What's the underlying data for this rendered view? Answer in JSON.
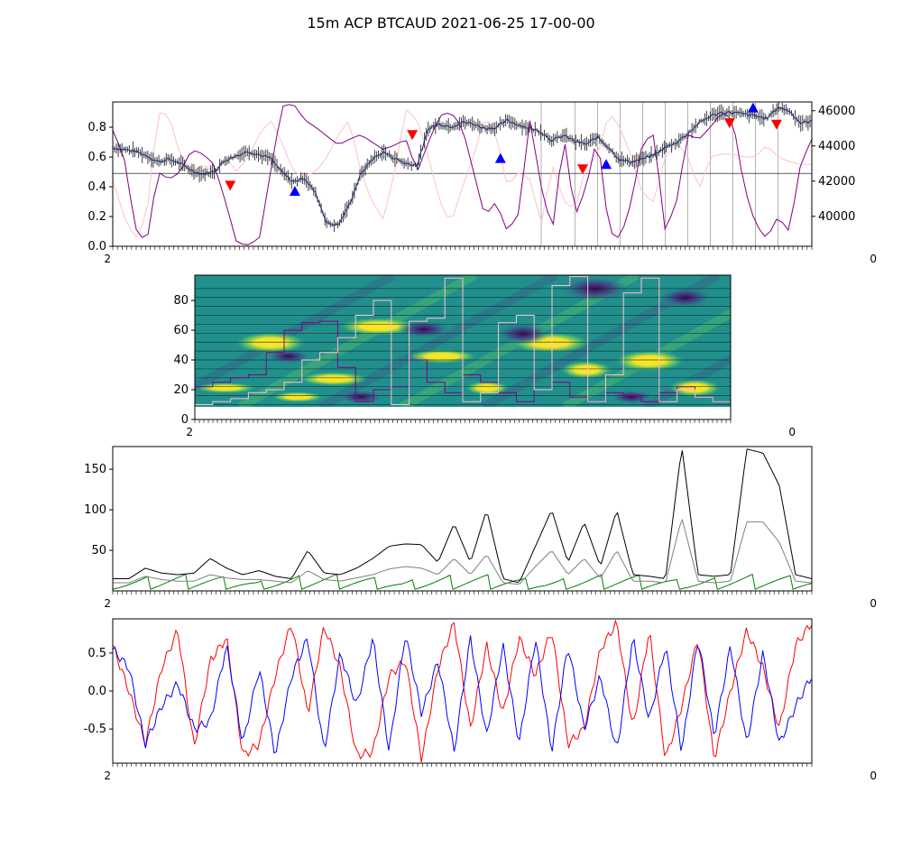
{
  "figure": {
    "title": "15m ACP BTCAUD 2021-06-25 17-00-00"
  },
  "chart_data": [
    {
      "panel": 1,
      "type": "line",
      "title": "",
      "xlabel": "",
      "ylabel": "",
      "ylim_left": [
        0.0,
        0.97
      ],
      "yticks_left": [
        "0.0",
        "0.2",
        "0.4",
        "0.6",
        "0.8"
      ],
      "ylim_right": [
        38300,
        46500
      ],
      "yticks_right": [
        "40000",
        "42000",
        "44000",
        "46000"
      ],
      "hline": 0.49,
      "colors": {
        "price": "#1b2a7a",
        "candles": "#000000",
        "purple": "#800080",
        "pink": "#ffc0cb",
        "sell": "#ff0000",
        "buy": "#0000ff",
        "vlines": "#808080"
      },
      "price": [
        43900,
        43800,
        43700,
        43450,
        43100,
        43250,
        43000,
        42600,
        42400,
        42550,
        43200,
        43450,
        43700,
        43500,
        43300,
        42500,
        41950,
        42200,
        41300,
        39600,
        39500,
        40700,
        42400,
        43250,
        43650,
        43300,
        43000,
        42900,
        45000,
        45250,
        45100,
        45350,
        45250,
        45000,
        45050,
        45450,
        45200,
        45000,
        44800,
        44300,
        44600,
        44250,
        44100,
        44500,
        43900,
        43200,
        43100,
        43250,
        43500,
        43900,
        44200,
        44700,
        45300,
        45700,
        45900,
        45900,
        45800,
        45700,
        45550,
        46200,
        46000,
        45300,
        45400
      ],
      "purple": [
        0.78,
        0.6,
        0.12,
        0.02,
        0.5,
        0.45,
        0.5,
        0.65,
        0.62,
        0.55,
        0.3,
        0.02,
        0.01,
        0.05,
        0.5,
        0.94,
        0.96,
        0.85,
        0.8,
        0.74,
        0.68,
        0.72,
        0.75,
        0.7,
        0.65,
        0.68,
        0.72,
        0.5,
        0.7,
        0.88,
        0.9,
        0.8,
        0.5,
        0.2,
        0.3,
        0.1,
        0.22,
        0.85,
        0.4,
        0.1,
        0.75,
        0.2,
        0.4,
        0.75,
        0.1,
        0.05,
        0.3,
        0.7,
        0.75,
        0.1,
        0.3,
        0.75,
        0.72,
        0.8,
        0.9,
        0.85,
        0.4,
        0.15,
        0.05,
        0.2,
        0.1,
        0.55,
        0.72
      ],
      "pink": [
        0.45,
        0.2,
        0.05,
        0.2,
        0.9,
        0.88,
        0.6,
        0.5,
        0.55,
        0.5,
        0.6,
        0.5,
        0.6,
        0.75,
        0.85,
        0.7,
        0.5,
        0.48,
        0.5,
        0.6,
        0.75,
        0.85,
        0.5,
        0.3,
        0.18,
        0.5,
        0.92,
        0.85,
        0.6,
        0.3,
        0.15,
        0.4,
        0.6,
        0.88,
        0.75,
        0.4,
        0.5,
        0.45,
        0.15,
        0.55,
        0.3,
        0.25,
        0.55,
        0.6,
        0.9,
        0.8,
        0.6,
        0.35,
        0.3,
        0.6,
        0.7,
        0.6,
        0.38,
        0.6,
        0.62,
        0.62,
        0.6,
        0.6,
        0.68,
        0.6,
        0.57,
        0.55,
        0.55
      ],
      "vlines_index": [
        38,
        41,
        43,
        45,
        47,
        49,
        51,
        53,
        55,
        57,
        59
      ],
      "sell_signals": [
        {
          "i": 20,
          "y": 0.41
        },
        {
          "i": 51,
          "y": 0.75
        },
        {
          "i": 80,
          "y": 0.52
        },
        {
          "i": 105,
          "y": 0.83
        },
        {
          "i": 113,
          "y": 0.82
        }
      ],
      "buy_signals": [
        {
          "i": 31,
          "y": 0.37
        },
        {
          "i": 66,
          "y": 0.59
        },
        {
          "i": 84,
          "y": 0.55
        },
        {
          "i": 109,
          "y": 0.93
        }
      ]
    },
    {
      "panel": 2,
      "type": "heatmap",
      "title": "",
      "xlabel": "",
      "ylabel": "",
      "ylim": [
        0,
        97
      ],
      "yticks": [
        "0",
        "20",
        "40",
        "60",
        "80"
      ],
      "colors": {
        "background": "#21908d",
        "hot": "#fde725",
        "cold": "#440154",
        "light": "#ffc0cb",
        "dark": "#800080",
        "gridlines": "#0b2a2a"
      },
      "light_line": [
        10,
        12,
        14,
        18,
        20,
        25,
        40,
        45,
        55,
        70,
        80,
        10,
        66,
        68,
        95,
        12,
        18,
        65,
        70,
        20,
        90,
        96,
        12,
        30,
        85,
        95,
        12,
        20,
        15,
        12
      ],
      "dark_line": [
        22,
        25,
        28,
        30,
        45,
        60,
        65,
        66,
        35,
        12,
        20,
        22,
        40,
        25,
        18,
        30,
        25,
        18,
        12,
        20,
        25,
        15,
        12,
        18,
        16,
        12,
        18,
        22,
        15,
        12
      ]
    },
    {
      "panel": 3,
      "type": "line",
      "title": "",
      "xlabel": "",
      "ylabel": "",
      "ylim": [
        0,
        178
      ],
      "yticks": [
        "50",
        "100",
        "150"
      ],
      "colors": {
        "black": "#000000",
        "gray": "#808080",
        "green": "#008000"
      },
      "black": [
        15,
        15,
        28,
        22,
        20,
        22,
        40,
        28,
        20,
        25,
        18,
        15,
        50,
        22,
        20,
        28,
        40,
        55,
        58,
        57,
        35,
        83,
        35,
        100,
        15,
        10,
        55,
        100,
        35,
        85,
        30,
        100,
        20,
        18,
        15,
        178,
        20,
        18,
        20,
        175,
        170,
        130,
        20,
        15
      ],
      "gray": [
        10,
        10,
        18,
        14,
        12,
        12,
        20,
        16,
        14,
        14,
        12,
        10,
        25,
        14,
        12,
        16,
        20,
        27,
        30,
        28,
        20,
        40,
        20,
        45,
        10,
        8,
        30,
        50,
        20,
        40,
        15,
        50,
        12,
        12,
        10,
        90,
        12,
        10,
        12,
        85,
        85,
        60,
        12,
        10
      ],
      "green_sawtooth_period": 14,
      "green_peak": 20
    },
    {
      "panel": 4,
      "type": "line",
      "title": "",
      "xlabel": "",
      "ylabel": "",
      "ylim": [
        -0.95,
        0.95
      ],
      "yticks": [
        "0.5",
        "0.0",
        "-0.5"
      ],
      "colors": {
        "red": "#ff0000",
        "blue": "#0000ff"
      },
      "red": [
        0.6,
        0.0,
        -0.7,
        0.3,
        0.8,
        -0.75,
        0.4,
        0.7,
        -0.85,
        -0.7,
        0.2,
        0.9,
        -0.3,
        0.85,
        0.3,
        -0.85,
        -0.8,
        0.2,
        0.4,
        -0.9,
        0.3,
        0.9,
        -0.5,
        0.6,
        -0.3,
        0.7,
        0.2,
        0.8,
        -0.7,
        -0.5,
        0.55,
        0.9,
        -0.5,
        0.8,
        -0.9,
        -0.2,
        0.7,
        -0.9,
        0.0,
        0.8,
        0.3,
        -0.5,
        0.6,
        0.9
      ],
      "blue": [
        0.55,
        0.3,
        -0.7,
        -0.2,
        0.1,
        -0.5,
        -0.4,
        0.6,
        -0.7,
        0.3,
        -0.85,
        0.2,
        0.7,
        -0.8,
        0.5,
        -0.2,
        0.7,
        -0.8,
        0.75,
        -0.3,
        0.4,
        -0.8,
        0.7,
        -0.6,
        0.6,
        -0.7,
        0.7,
        -0.8,
        0.6,
        -0.5,
        0.2,
        -0.8,
        0.7,
        -0.4,
        0.6,
        -0.8,
        0.7,
        -0.6,
        0.6,
        -0.7,
        0.5,
        -0.7,
        -0.2,
        0.2
      ]
    }
  ]
}
